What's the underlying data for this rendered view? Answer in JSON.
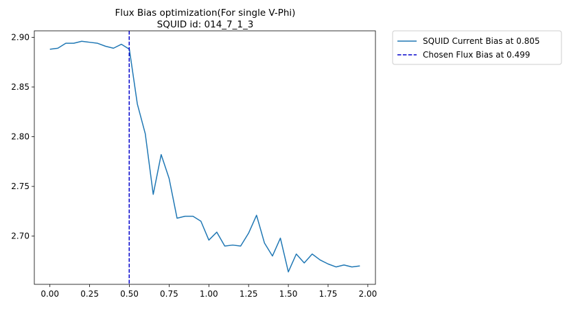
{
  "chart_data": {
    "type": "line",
    "title": "Flux Bias optimization(For single V-Phi)",
    "subtitle": "SQUID id: 014_7_1_3",
    "xlabel": "",
    "ylabel": "",
    "xlim": [
      -0.098,
      2.048
    ],
    "ylim": [
      2.6515,
      2.9065
    ],
    "xticks": [
      0.0,
      0.25,
      0.5,
      0.75,
      1.0,
      1.25,
      1.5,
      1.75,
      2.0
    ],
    "xtick_labels": [
      "0.00",
      "0.25",
      "0.50",
      "0.75",
      "1.00",
      "1.25",
      "1.50",
      "1.75",
      "2.00"
    ],
    "yticks": [
      2.7,
      2.75,
      2.8,
      2.85,
      2.9
    ],
    "ytick_labels": [
      "2.70",
      "2.75",
      "2.80",
      "2.85",
      "2.90"
    ],
    "grid": false,
    "legend_position": "outside-top-right",
    "series": [
      {
        "name": "SQUID Current Bias at 0.805",
        "color": "#1f77b4",
        "style": "solid",
        "x": [
          0.0,
          0.05,
          0.1,
          0.15,
          0.2,
          0.25,
          0.3,
          0.35,
          0.4,
          0.45,
          0.5,
          0.55,
          0.6,
          0.65,
          0.7,
          0.75,
          0.8,
          0.85,
          0.9,
          0.95,
          1.0,
          1.05,
          1.1,
          1.15,
          1.2,
          1.25,
          1.3,
          1.35,
          1.4,
          1.45,
          1.5,
          1.55,
          1.6,
          1.65,
          1.7,
          1.75,
          1.8,
          1.85,
          1.9,
          1.95
        ],
        "y": [
          2.888,
          2.889,
          2.894,
          2.894,
          2.896,
          2.895,
          2.894,
          2.891,
          2.889,
          2.893,
          2.888,
          2.833,
          2.803,
          2.742,
          2.782,
          2.758,
          2.718,
          2.72,
          2.72,
          2.715,
          2.696,
          2.704,
          2.69,
          2.691,
          2.69,
          2.703,
          2.721,
          2.693,
          2.68,
          2.698,
          2.664,
          2.682,
          2.673,
          2.682,
          2.676,
          2.672,
          2.669,
          2.671,
          2.669,
          2.67
        ]
      }
    ],
    "vlines": [
      {
        "name": "Chosen Flux Bias at 0.499",
        "x": 0.499,
        "color": "#0000cc",
        "style": "dashed"
      }
    ]
  }
}
